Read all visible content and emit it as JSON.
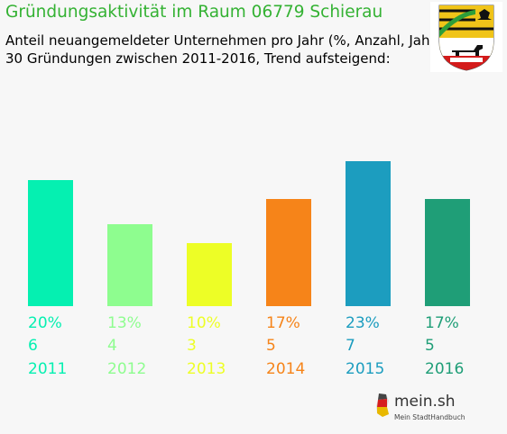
{
  "header": {
    "title": "Gründungsaktivität im Raum 06779 Schierau",
    "subtitle_line1": "Anteil neuangemeldeter Unternehmen pro Jahr (%, Anzahl, Jahr)",
    "subtitle_line2": "30 Gründungen zwischen 2011-2016, Trend aufsteigend:"
  },
  "branding": {
    "name": "mein.sh",
    "tagline": "Mein StadtHandbuch",
    "crest_icon": "saxony-anhalt-coat-of-arms-icon"
  },
  "colors": {
    "title": "#34b233",
    "background": "#f7f7f7"
  },
  "chart_data": {
    "type": "bar",
    "categories": [
      "2011",
      "2012",
      "2013",
      "2014",
      "2015",
      "2016"
    ],
    "values": [
      20,
      13,
      10,
      17,
      23,
      17
    ],
    "counts": [
      6,
      4,
      3,
      5,
      7,
      5
    ],
    "percent_labels": [
      "20%",
      "13%",
      "10%",
      "17%",
      "23%",
      "17%"
    ],
    "count_labels": [
      "6",
      "4",
      "3",
      "5",
      "7",
      "5"
    ],
    "colors": [
      "#05f0b1",
      "#8efd8f",
      "#edfe26",
      "#f68419",
      "#1c9dbf",
      "#1f9e77"
    ],
    "ylim": [
      0,
      23
    ],
    "grid": false
  }
}
